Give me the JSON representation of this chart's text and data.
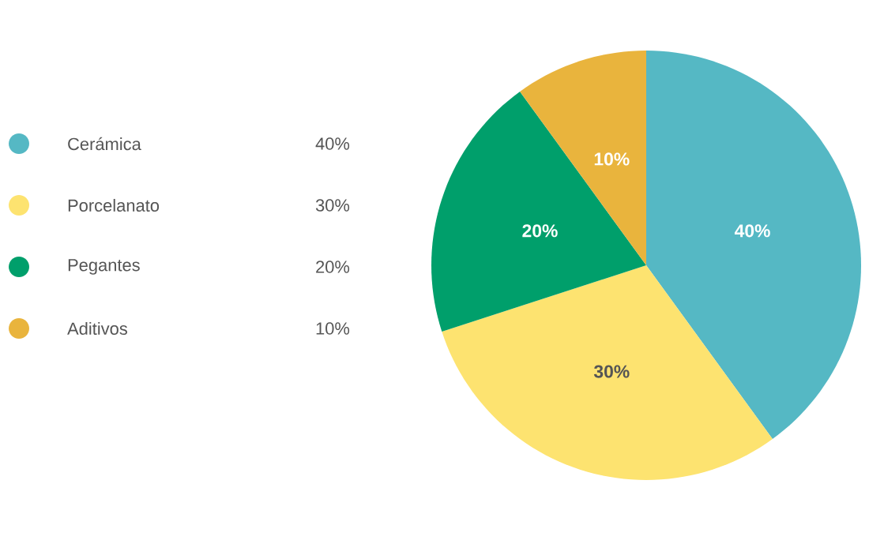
{
  "chart_data": {
    "type": "pie",
    "categories": [
      "Cerámica",
      "Porcelanato",
      "Pegantes",
      "Aditivos"
    ],
    "values": [
      40,
      30,
      20,
      10
    ],
    "value_labels": [
      "40%",
      "30%",
      "20%",
      "10%"
    ],
    "colors": [
      "#55b8c4",
      "#fde370",
      "#009f6b",
      "#e9b43d"
    ],
    "legend": "left"
  }
}
